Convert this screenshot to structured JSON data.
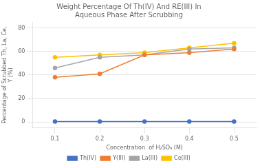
{
  "chart_data": {
    "type": "line",
    "title": "Weight Percentage Of Th(IV) And RE(III) In\nAqueous Phase After Scrubbing",
    "xlabel": "Concentration  of H₂SO₄ (M)",
    "ylabel": "Percentage of Scrubbed Th, La, Ce,\nY (%)",
    "x": [
      0.1,
      0.2,
      0.3,
      0.4,
      0.5
    ],
    "series": [
      {
        "name": "Th(IV)",
        "color": "#4472C4",
        "marker": "circle",
        "values": [
          0.5,
          0.5,
          0.5,
          0.5,
          0.5
        ]
      },
      {
        "name": "Y(III)",
        "color": "#ED7D31",
        "marker": "circle",
        "values": [
          38,
          41,
          57,
          59,
          62
        ]
      },
      {
        "name": "La(III)",
        "color": "#A5A5A5",
        "marker": "circle",
        "values": [
          46,
          55,
          57,
          62,
          63
        ]
      },
      {
        "name": "Ce(III)",
        "color": "#FFC000",
        "marker": "circle",
        "values": [
          55,
          57,
          59,
          63,
          67
        ]
      }
    ],
    "xlim": [
      0.05,
      0.55
    ],
    "xticks": [
      0.1,
      0.2,
      0.3,
      0.4,
      0.5
    ],
    "ylim": [
      -5,
      85
    ],
    "yticks": [
      0,
      20,
      40,
      60,
      80
    ],
    "grid": true,
    "legend": "bottom"
  }
}
